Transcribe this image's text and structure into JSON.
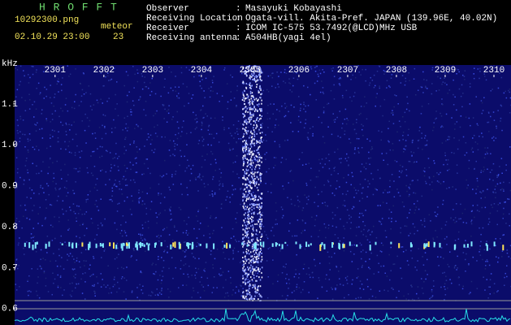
{
  "header": {
    "program": "H R O F F T",
    "file": "10292300.png",
    "meteor_label": "meteor",
    "datetime": "02.10.29 23:00",
    "meteor_count": "23",
    "info": [
      {
        "label": "Observer",
        "value": "Masayuki Kobayashi"
      },
      {
        "label": "Receiving Location",
        "value": "Ogata-vill. Akita-Pref. JAPAN (139.96E, 40.02N)"
      },
      {
        "label": "Receiver",
        "value": "ICOM IC-575 53.7492(@LCD)MHz USB"
      },
      {
        "label": "Receiving antenna",
        "value": "A504HB(yagi 4el)"
      }
    ]
  },
  "chart_data": {
    "type": "spectrogram",
    "y_label": "kHz",
    "xlim": [
      2300.17,
      2310.35
    ],
    "xticks": [
      2301,
      2302,
      2303,
      2304,
      2305,
      2306,
      2307,
      2308,
      2309,
      2310
    ],
    "ylim": [
      0.56,
      1.195
    ],
    "yticks": [
      0.6,
      0.7,
      0.8,
      0.9,
      {
        "value": 1,
        "label": "1.0"
      },
      1.1
    ]
  }
}
